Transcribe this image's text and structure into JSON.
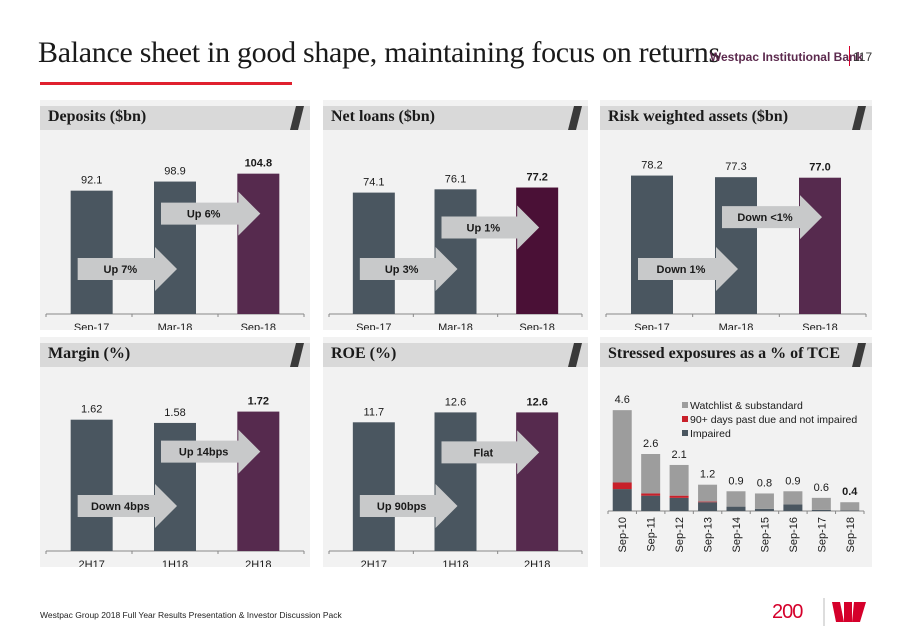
{
  "header": {
    "title": "Balance sheet in good shape, maintaining focus on returns",
    "brand": "Westpac Institutional Bank",
    "page_number": "117"
  },
  "footer": {
    "text": "Westpac Group 2018 Full Year Results Presentation & Investor Discussion Pack",
    "logo_number": "200"
  },
  "colors": {
    "bar_prior": "#4a5660",
    "bar_current": "#562a4e",
    "bar_current_dark": "#4a1036",
    "arrow": "#c8c9ca",
    "accent_red": "#e0202e",
    "watchlist": "#9d9d9d",
    "past_due": "#c8202a",
    "impaired": "#4a5660"
  },
  "chart_data": [
    {
      "id": "deposits",
      "type": "bar",
      "title": "Deposits ($bn)",
      "categories": [
        "Sep-17",
        "Mar-18",
        "Sep-18"
      ],
      "values": [
        92.1,
        98.9,
        104.8
      ],
      "labels": [
        "92.1",
        "98.9",
        "104.8"
      ],
      "ylim": [
        0,
        115
      ],
      "highlight_last": true,
      "arrows": [
        {
          "from": 0,
          "to": 1,
          "label": "Up 7%"
        },
        {
          "from": 1,
          "to": 2,
          "label": "Up 6%"
        }
      ]
    },
    {
      "id": "net-loans",
      "type": "bar",
      "title": "Net loans ($bn)",
      "categories": [
        "Sep-17",
        "Mar-18",
        "Sep-18"
      ],
      "values": [
        74.1,
        76.1,
        77.2
      ],
      "labels": [
        "74.1",
        "76.1",
        "77.2"
      ],
      "ylim": [
        0,
        94
      ],
      "highlight_last": true,
      "dark_last": true,
      "arrows": [
        {
          "from": 0,
          "to": 1,
          "label": "Up 3%"
        },
        {
          "from": 1,
          "to": 2,
          "label": "Up 1%"
        }
      ]
    },
    {
      "id": "rwa",
      "type": "bar",
      "title": "Risk weighted assets ($bn)",
      "categories": [
        "Sep-17",
        "Mar-18",
        "Sep-18"
      ],
      "values": [
        78.2,
        77.3,
        77.0
      ],
      "labels": [
        "78.2",
        "77.3",
        "77.0"
      ],
      "ylim": [
        0,
        87
      ],
      "highlight_last": true,
      "arrows": [
        {
          "from": 0,
          "to": 1,
          "label": "Down 1%"
        },
        {
          "from": 1,
          "to": 2,
          "label": "Down <1%"
        }
      ]
    },
    {
      "id": "margin",
      "type": "bar",
      "title": "Margin (%)",
      "categories": [
        "2H17",
        "1H18",
        "2H18"
      ],
      "values": [
        1.62,
        1.58,
        1.72
      ],
      "labels": [
        "1.62",
        "1.58",
        "1.72"
      ],
      "ylim": [
        0,
        1.9
      ],
      "highlight_last": true,
      "arrows": [
        {
          "from": 0,
          "to": 1,
          "label": "Down 4bps"
        },
        {
          "from": 1,
          "to": 2,
          "label": "Up 14bps"
        }
      ]
    },
    {
      "id": "roe",
      "type": "bar",
      "title": "ROE (%)",
      "categories": [
        "2H17",
        "1H18",
        "2H18"
      ],
      "values": [
        11.7,
        12.6,
        12.6
      ],
      "labels": [
        "11.7",
        "12.6",
        "12.6"
      ],
      "ylim": [
        0,
        14
      ],
      "highlight_last": true,
      "arrows": [
        {
          "from": 0,
          "to": 1,
          "label": "Up 90bps"
        },
        {
          "from": 1,
          "to": 2,
          "label": "Flat"
        }
      ]
    },
    {
      "id": "stressed",
      "type": "bar",
      "stacked": true,
      "title": "Stressed exposures as a % of TCE",
      "categories": [
        "Sep-10",
        "Sep-11",
        "Sep-12",
        "Sep-13",
        "Sep-14",
        "Sep-15",
        "Sep-16",
        "Sep-17",
        "Sep-18"
      ],
      "totals": [
        "4.6",
        "2.6",
        "2.1",
        "1.2",
        "0.9",
        "0.8",
        "0.9",
        "0.6",
        "0.4"
      ],
      "ylim": [
        0,
        5.2
      ],
      "legend_position": "top-right",
      "series": [
        {
          "name": "Impaired",
          "values": [
            1.0,
            0.7,
            0.6,
            0.4,
            0.2,
            0.1,
            0.3,
            0.05,
            0.02
          ]
        },
        {
          "name": "90+ days past due and not impaired",
          "values": [
            0.3,
            0.1,
            0.1,
            0.03,
            0.0,
            0.0,
            0.0,
            0.0,
            0.0
          ]
        },
        {
          "name": "Watchlist & substandard",
          "values": [
            3.3,
            1.8,
            1.4,
            0.77,
            0.7,
            0.7,
            0.6,
            0.55,
            0.38
          ]
        }
      ],
      "legend_order": [
        "Watchlist & substandard",
        "90+ days past due and not impaired",
        "Impaired"
      ]
    }
  ]
}
